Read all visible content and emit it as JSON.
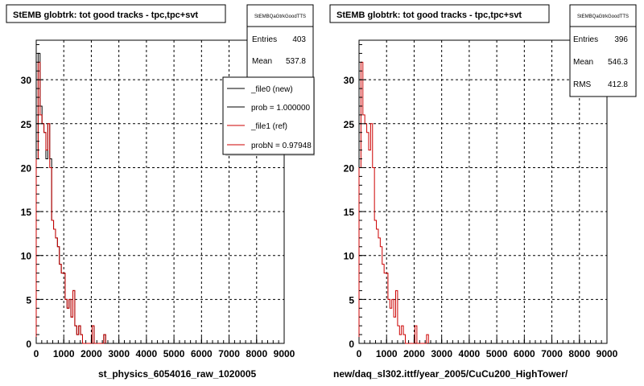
{
  "colors": {
    "new": "#000000",
    "ref": "#cc0000",
    "frame": "#000000",
    "background": "#ffffff"
  },
  "chart_data": [
    {
      "type": "histogram",
      "title": "StEMB globtrk: tot good tracks - tpc,tpc+svt",
      "xlabel": "st_physics_6054016_raw_1020005",
      "ylabel": "",
      "xlim": [
        0,
        9000
      ],
      "ylim": [
        0,
        34.5
      ],
      "xticks": [
        0,
        1000,
        2000,
        3000,
        4000,
        5000,
        6000,
        7000,
        8000,
        9000
      ],
      "yticks": [
        0,
        5,
        10,
        15,
        20,
        25,
        30
      ],
      "grid": true,
      "stats": {
        "name": "StEMBQaGtrkGoodTTS",
        "rows": [
          {
            "label": "Entries",
            "value": "403"
          },
          {
            "label": "Mean",
            "value": "537.8"
          }
        ]
      },
      "legend": {
        "placement": "top-right",
        "entries": [
          {
            "label": "_file0 (new)",
            "color": "#000000"
          },
          {
            "label": "prob = 1.000000",
            "color": "#000000"
          },
          {
            "label": "_file1 (ref)",
            "color": "#cc0000"
          },
          {
            "label": "probN = 0.97948",
            "color": "#cc0000"
          }
        ]
      },
      "series": [
        {
          "name": "_file0 (new)",
          "color": "#000000",
          "bin_width": 70,
          "x_start": 0,
          "values": [
            21,
            33,
            27,
            25,
            24,
            21,
            25,
            21,
            14,
            13,
            12,
            11,
            9,
            8,
            8,
            5,
            4,
            5,
            3,
            6,
            2,
            1,
            2,
            1,
            0,
            0,
            0,
            0,
            0,
            2,
            0,
            0,
            0,
            0,
            0,
            1
          ]
        },
        {
          "name": "_file1 (ref)",
          "color": "#cc0000",
          "bin_width": 70,
          "x_start": 0,
          "values": [
            21,
            32,
            26,
            25,
            24,
            22,
            25,
            20,
            14,
            13,
            12,
            11,
            9,
            8,
            8,
            5,
            4,
            5,
            3,
            6,
            2,
            1,
            2,
            1,
            0,
            0,
            0,
            0,
            0,
            2,
            0,
            0,
            0,
            0,
            0,
            1
          ]
        }
      ]
    },
    {
      "type": "histogram",
      "title": "StEMB globtrk: tot good tracks - tpc,tpc+svt",
      "xlabel": "new/daq_sl302.ittf/year_2005/CuCu200_HighTower/",
      "ylabel": "",
      "xlim": [
        0,
        9000
      ],
      "ylim": [
        0,
        34.5
      ],
      "xticks": [
        0,
        1000,
        2000,
        3000,
        4000,
        5000,
        6000,
        7000,
        8000,
        9000
      ],
      "yticks": [
        0,
        5,
        10,
        15,
        20,
        25,
        30
      ],
      "grid": true,
      "stats": {
        "name": "StEMBQaGtrkGoodTTS",
        "rows": [
          {
            "label": "Entries",
            "value": "396"
          },
          {
            "label": "Mean",
            "value": "546.3"
          },
          {
            "label": "RMS",
            "value": "412.8"
          }
        ]
      },
      "series": [
        {
          "name": "",
          "color": "#cc0000",
          "bin_width": 70,
          "x_start": 0,
          "values": [
            20,
            32,
            26,
            25,
            24,
            22,
            25,
            20,
            14,
            13,
            12,
            11,
            9,
            8,
            8,
            5,
            4,
            5,
            3,
            6,
            2,
            1,
            2,
            1,
            0,
            0,
            0,
            0,
            0,
            2,
            0,
            0,
            0,
            0,
            0,
            1
          ]
        }
      ]
    }
  ]
}
